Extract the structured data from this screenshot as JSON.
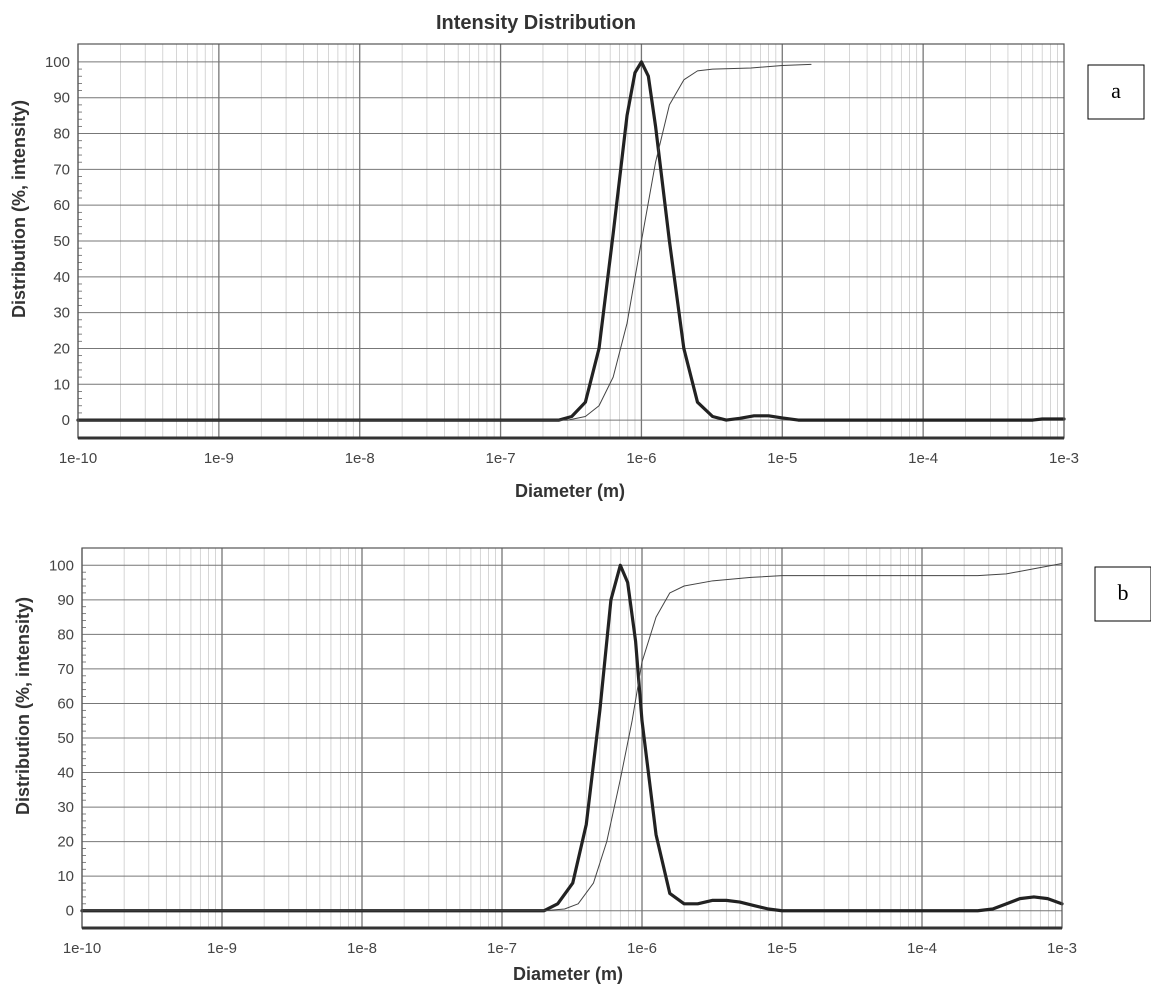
{
  "chart_data": [
    {
      "type": "line",
      "title": "Intensity Distribution",
      "panel_label": "a",
      "xlabel": "Diameter (m)",
      "ylabel": "Distribution (%, intensity)",
      "xscale": "log",
      "xlim": [
        1e-10,
        0.001
      ],
      "ylim": [
        -5,
        105
      ],
      "xticks": [
        "1e-10",
        "1e-9",
        "1e-8",
        "1e-7",
        "1e-6",
        "1e-5",
        "1e-4",
        "1e-3"
      ],
      "yticks": [
        "0",
        "10",
        "20",
        "30",
        "40",
        "50",
        "60",
        "70",
        "80",
        "90",
        "100"
      ],
      "grid": true,
      "series": [
        {
          "style": "bold",
          "points": [
            [
              1e-10,
              0
            ],
            [
              2.6e-07,
              0
            ],
            [
              3.2e-07,
              1
            ],
            [
              4e-07,
              5
            ],
            [
              5e-07,
              20
            ],
            [
              6.3e-07,
              52
            ],
            [
              7.9e-07,
              85
            ],
            [
              9e-07,
              97
            ],
            [
              1e-06,
              100
            ],
            [
              1.12e-06,
              96
            ],
            [
              1.26e-06,
              82
            ],
            [
              1.58e-06,
              50
            ],
            [
              2e-06,
              20
            ],
            [
              2.5e-06,
              5
            ],
            [
              3.2e-06,
              1
            ],
            [
              4e-06,
              0
            ],
            [
              5e-06,
              0.5
            ],
            [
              6.3e-06,
              1.2
            ],
            [
              8e-06,
              1.2
            ],
            [
              1e-05,
              0.6
            ],
            [
              1.3e-05,
              0
            ],
            [
              0.0006,
              0
            ],
            [
              0.0007,
              0.3
            ],
            [
              0.001,
              0.3
            ]
          ]
        },
        {
          "style": "thin",
          "points": [
            [
              1e-10,
              0
            ],
            [
              3e-07,
              0
            ],
            [
              4e-07,
              1
            ],
            [
              5e-07,
              4
            ],
            [
              6.3e-07,
              12
            ],
            [
              7.9e-07,
              27
            ],
            [
              1e-06,
              50
            ],
            [
              1.26e-06,
              72
            ],
            [
              1.58e-06,
              88
            ],
            [
              2e-06,
              95
            ],
            [
              2.5e-06,
              97.5
            ],
            [
              3.2e-06,
              98
            ],
            [
              6e-06,
              98.3
            ],
            [
              1e-05,
              99
            ],
            [
              1.6e-05,
              99.3
            ]
          ]
        }
      ]
    },
    {
      "type": "line",
      "title": "",
      "panel_label": "b",
      "xlabel": "Diameter (m)",
      "ylabel": "Distribution (%, intensity)",
      "xscale": "log",
      "xlim": [
        1e-10,
        0.001
      ],
      "ylim": [
        -5,
        105
      ],
      "xticks": [
        "1e-10",
        "1e-9",
        "1e-8",
        "1e-7",
        "1e-6",
        "1e-5",
        "1e-4",
        "1e-3"
      ],
      "yticks": [
        "0",
        "10",
        "20",
        "30",
        "40",
        "50",
        "60",
        "70",
        "80",
        "90",
        "100"
      ],
      "grid": true,
      "series": [
        {
          "style": "bold",
          "points": [
            [
              1e-10,
              0
            ],
            [
              2e-07,
              0
            ],
            [
              2.5e-07,
              2
            ],
            [
              3.2e-07,
              8
            ],
            [
              4e-07,
              25
            ],
            [
              5e-07,
              58
            ],
            [
              6e-07,
              90
            ],
            [
              7e-07,
              100
            ],
            [
              7.9e-07,
              95
            ],
            [
              9e-07,
              78
            ],
            [
              1e-06,
              55
            ],
            [
              1.26e-06,
              22
            ],
            [
              1.58e-06,
              5
            ],
            [
              2e-06,
              2
            ],
            [
              2.5e-06,
              2
            ],
            [
              3.2e-06,
              3
            ],
            [
              4e-06,
              3
            ],
            [
              5e-06,
              2.5
            ],
            [
              6.3e-06,
              1.5
            ],
            [
              8e-06,
              0.5
            ],
            [
              1e-05,
              0
            ],
            [
              0.00025,
              0
            ],
            [
              0.00032,
              0.5
            ],
            [
              0.0004,
              2
            ],
            [
              0.0005,
              3.5
            ],
            [
              0.00063,
              4
            ],
            [
              0.00079,
              3.5
            ],
            [
              0.001,
              2
            ]
          ]
        },
        {
          "style": "thin",
          "points": [
            [
              1e-10,
              0
            ],
            [
              2e-07,
              0
            ],
            [
              2.8e-07,
              0.5
            ],
            [
              3.5e-07,
              2
            ],
            [
              4.5e-07,
              8
            ],
            [
              5.6e-07,
              20
            ],
            [
              7e-07,
              38
            ],
            [
              8.5e-07,
              55
            ],
            [
              1e-06,
              72
            ],
            [
              1.26e-06,
              85
            ],
            [
              1.58e-06,
              92
            ],
            [
              2e-06,
              94
            ],
            [
              3.2e-06,
              95.5
            ],
            [
              6e-06,
              96.5
            ],
            [
              1e-05,
              97
            ],
            [
              0.0001,
              97
            ],
            [
              0.00025,
              97
            ],
            [
              0.0004,
              97.5
            ],
            [
              0.00063,
              99
            ],
            [
              0.001,
              100.5
            ]
          ]
        }
      ]
    }
  ]
}
